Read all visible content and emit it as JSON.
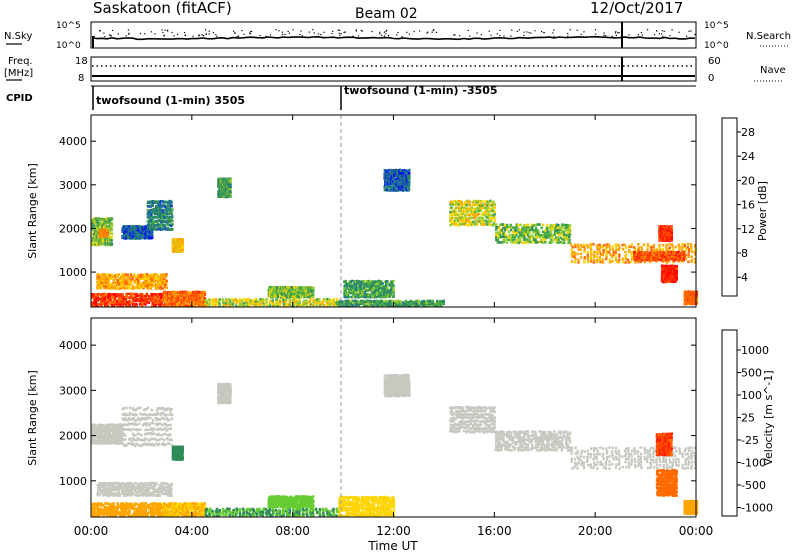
{
  "header": {
    "site": "Saskatoon (fitACF)",
    "beam": "Beam 02",
    "date": "12/Oct/2017"
  },
  "noise_panel": {
    "left_label": "N.Sky",
    "right_label": "N.Search",
    "left_ticks": [
      "10^5",
      "10^0"
    ],
    "right_ticks": [
      "10^5",
      "10^0"
    ]
  },
  "freq_panel": {
    "left_label_1": "Freq.",
    "left_label_2": "[MHz]",
    "right_label": "Nave",
    "left_ticks": [
      "18",
      "8"
    ],
    "right_ticks": [
      "60",
      "0"
    ]
  },
  "cpid": {
    "label": "CPID",
    "segments": [
      "twofsound (1-min) 3505",
      "twofsound (1-min) -3505"
    ]
  },
  "chart_data": [
    {
      "type": "heatmap",
      "panel": "power",
      "ylabel": "Slant Range [km]",
      "ylim": [
        200,
        4600
      ],
      "yticks": [
        "4000",
        "3000",
        "2000",
        "1000"
      ],
      "xlim": [
        0,
        24
      ],
      "colorbar_label": "Power [dB]",
      "colorbar_ticks": [
        "28",
        "24",
        "20",
        "16",
        "12",
        "8",
        "4"
      ],
      "colors": [
        "#0000ff",
        "#0f3fd8",
        "#1f7a8c",
        "#2e8b57",
        "#44aa44",
        "#9acd32",
        "#ffd400",
        "#ffa500",
        "#ff6a00",
        "#ff3300",
        "#ff0000"
      ],
      "regions": [
        {
          "x": [
            0.0,
            0.8
          ],
          "y": [
            1650,
            2300
          ],
          "v": 12
        },
        {
          "x": [
            0.3,
            0.6
          ],
          "y": [
            1850,
            2000
          ],
          "v": 20
        },
        {
          "x": [
            1.2,
            2.4
          ],
          "y": [
            1800,
            2100
          ],
          "v": 6
        },
        {
          "x": [
            2.2,
            3.2
          ],
          "y": [
            2000,
            2700
          ],
          "v": 8
        },
        {
          "x": [
            3.2,
            3.6
          ],
          "y": [
            1500,
            1800
          ],
          "v": 16
        },
        {
          "x": [
            5.0,
            5.5
          ],
          "y": [
            2750,
            3200
          ],
          "v": 10
        },
        {
          "x": [
            0.2,
            3.0
          ],
          "y": [
            650,
            1000
          ],
          "v": 18
        },
        {
          "x": [
            0.0,
            2.8
          ],
          "y": [
            250,
            550
          ],
          "v": 26
        },
        {
          "x": [
            2.8,
            4.5
          ],
          "y": [
            250,
            600
          ],
          "v": 22
        },
        {
          "x": [
            4.5,
            9.8
          ],
          "y": [
            250,
            420
          ],
          "v": 14
        },
        {
          "x": [
            7.0,
            8.8
          ],
          "y": [
            450,
            700
          ],
          "v": 12
        },
        {
          "x": [
            9.8,
            14.0
          ],
          "y": [
            250,
            380
          ],
          "v": 10
        },
        {
          "x": [
            10.0,
            12.0
          ],
          "y": [
            450,
            850
          ],
          "v": 10
        },
        {
          "x": [
            11.6,
            12.6
          ],
          "y": [
            2900,
            3400
          ],
          "v": 6
        },
        {
          "x": [
            14.2,
            16.0
          ],
          "y": [
            2100,
            2700
          ],
          "v": 14
        },
        {
          "x": [
            16.0,
            19.0
          ],
          "y": [
            1700,
            2150
          ],
          "v": 12
        },
        {
          "x": [
            19.0,
            24.0
          ],
          "y": [
            1250,
            1700
          ],
          "v": 18
        },
        {
          "x": [
            21.5,
            23.5
          ],
          "y": [
            1300,
            1500
          ],
          "v": 24
        },
        {
          "x": [
            22.5,
            23.0
          ],
          "y": [
            1750,
            2100
          ],
          "v": 26
        },
        {
          "x": [
            22.6,
            23.2
          ],
          "y": [
            800,
            1200
          ],
          "v": 28
        },
        {
          "x": [
            23.5,
            24.0
          ],
          "y": [
            300,
            600
          ],
          "v": 22
        }
      ]
    },
    {
      "type": "heatmap",
      "panel": "velocity",
      "ylabel": "Slant Range [km]",
      "ylim": [
        200,
        4600
      ],
      "yticks": [
        "4000",
        "3000",
        "2000",
        "1000"
      ],
      "xlim": [
        0,
        24
      ],
      "xticks": [
        "00:00",
        "04:00",
        "08:00",
        "12:00",
        "16:00",
        "20:00",
        "00:00"
      ],
      "xlabel": "Time UT",
      "colorbar_label": "Velocity [m s^-1]",
      "colorbar_ticks": [
        "1000",
        "500",
        "100",
        "25",
        "-25",
        "-100",
        "-500",
        "-1000"
      ],
      "colors": [
        "#1f3fd0",
        "#1f6fa0",
        "#2e8b57",
        "#66cc33",
        "#c8c8c0",
        "#ffd400",
        "#ffa500",
        "#ff6a00",
        "#ff1a00"
      ],
      "regions": [
        {
          "x": [
            0.0,
            1.2
          ],
          "y": [
            1850,
            2300
          ],
          "v": 0
        },
        {
          "x": [
            1.2,
            3.2
          ],
          "y": [
            1800,
            2700
          ],
          "v": 0
        },
        {
          "x": [
            3.2,
            3.6
          ],
          "y": [
            1500,
            1800
          ],
          "v": 150
        },
        {
          "x": [
            5.0,
            5.5
          ],
          "y": [
            2750,
            3200
          ],
          "v": 0
        },
        {
          "x": [
            0.2,
            3.2
          ],
          "y": [
            700,
            1000
          ],
          "v": 0
        },
        {
          "x": [
            0.0,
            2.8
          ],
          "y": [
            250,
            550
          ],
          "v": -200
        },
        {
          "x": [
            2.8,
            4.5
          ],
          "y": [
            250,
            550
          ],
          "v": -60
        },
        {
          "x": [
            4.5,
            9.8
          ],
          "y": [
            250,
            420
          ],
          "v": 60
        },
        {
          "x": [
            7.0,
            8.8
          ],
          "y": [
            450,
            700
          ],
          "v": 40
        },
        {
          "x": [
            9.8,
            12.0
          ],
          "y": [
            250,
            700
          ],
          "v": -40
        },
        {
          "x": [
            11.6,
            12.6
          ],
          "y": [
            2900,
            3400
          ],
          "v": 0
        },
        {
          "x": [
            14.2,
            16.0
          ],
          "y": [
            2100,
            2700
          ],
          "v": 0
        },
        {
          "x": [
            16.0,
            19.0
          ],
          "y": [
            1700,
            2150
          ],
          "v": 0
        },
        {
          "x": [
            19.0,
            24.0
          ],
          "y": [
            1300,
            1800
          ],
          "v": 0
        },
        {
          "x": [
            22.4,
            23.0
          ],
          "y": [
            1600,
            2100
          ],
          "v": -700
        },
        {
          "x": [
            22.4,
            23.2
          ],
          "y": [
            700,
            1300
          ],
          "v": -400
        },
        {
          "x": [
            23.5,
            24.0
          ],
          "y": [
            300,
            600
          ],
          "v": -200
        }
      ]
    }
  ]
}
